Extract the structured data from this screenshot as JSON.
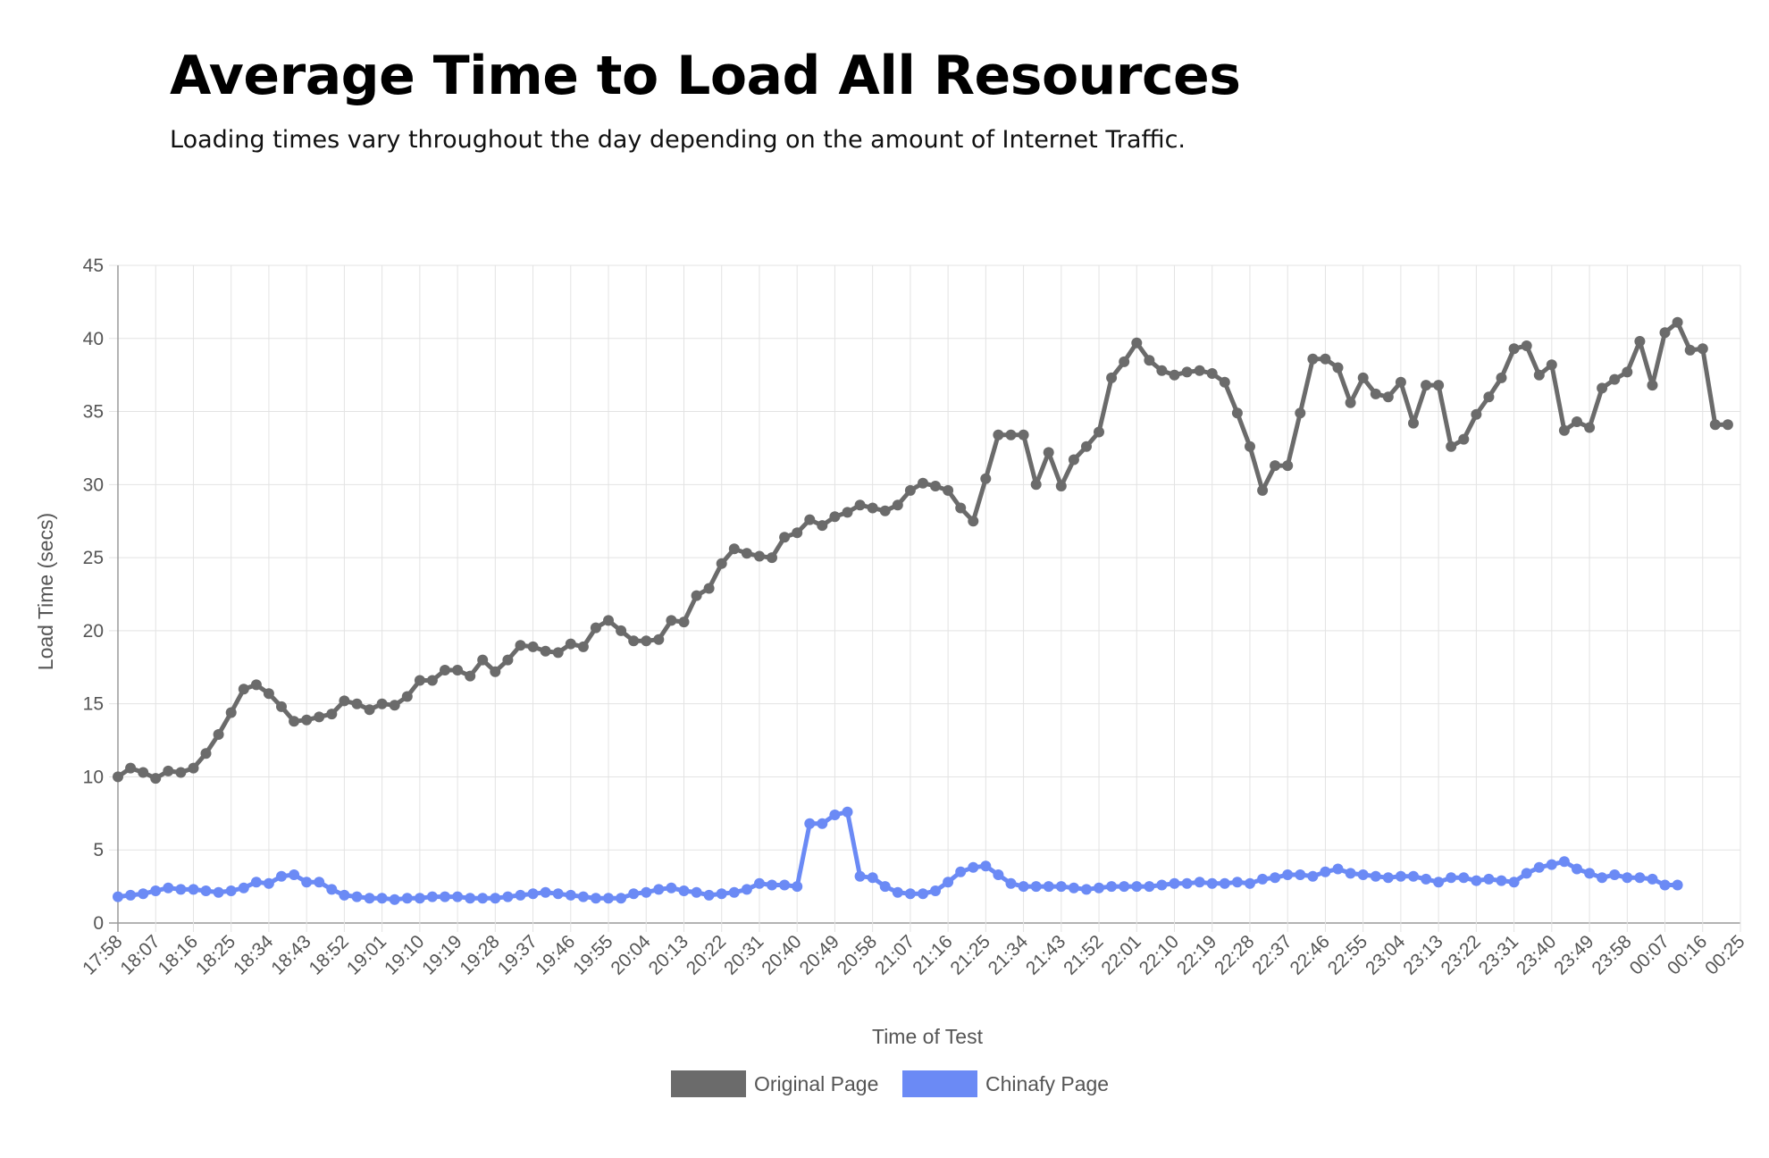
{
  "header": {
    "title": "Average Time to Load All Resources",
    "subtitle": "Loading times vary throughout the day depending on the amount of Internet Traffic."
  },
  "chart_data": {
    "type": "line",
    "xlabel": "Time of Test",
    "ylabel": "Load Time (secs)",
    "ylim": [
      0,
      45
    ],
    "yticks": [
      0,
      5,
      10,
      15,
      20,
      25,
      30,
      35,
      40,
      45
    ],
    "xticks": [
      "17:58",
      "18:07",
      "18:16",
      "18:25",
      "18:34",
      "18:43",
      "18:52",
      "19:01",
      "19:10",
      "19:19",
      "19:28",
      "19:37",
      "19:46",
      "19:55",
      "20:04",
      "20:13",
      "20:22",
      "20:31",
      "20:40",
      "20:49",
      "20:58",
      "21:07",
      "21:16",
      "21:25",
      "21:34",
      "21:43",
      "21:52",
      "22:01",
      "22:10",
      "22:19",
      "22:28",
      "22:37",
      "22:46",
      "22:55",
      "23:04",
      "23:13",
      "23:22",
      "23:31",
      "23:40",
      "23:49",
      "23:58",
      "00:07",
      "00:16",
      "00:25"
    ],
    "grid": true,
    "legend_position": "bottom",
    "series": [
      {
        "name": "Original Page",
        "color": "#6b6b6b",
        "values": [
          10.0,
          10.6,
          10.3,
          9.9,
          10.4,
          10.3,
          10.6,
          11.6,
          12.9,
          14.4,
          16.0,
          16.3,
          15.7,
          14.8,
          13.8,
          13.9,
          14.1,
          14.3,
          15.2,
          15.0,
          14.6,
          15.0,
          14.9,
          15.5,
          16.6,
          16.6,
          17.3,
          17.3,
          16.9,
          18.0,
          17.2,
          18.0,
          19.0,
          18.9,
          18.6,
          18.5,
          19.1,
          18.9,
          20.2,
          20.7,
          20.0,
          19.3,
          19.3,
          19.4,
          20.7,
          20.6,
          22.4,
          22.9,
          24.6,
          25.6,
          25.3,
          25.1,
          25.0,
          26.4,
          26.7,
          27.6,
          27.2,
          27.8,
          28.1,
          28.6,
          28.4,
          28.2,
          28.6,
          29.6,
          30.1,
          29.9,
          29.6,
          28.4,
          27.5,
          30.4,
          33.4,
          33.4,
          33.4,
          30.0,
          32.2,
          29.9,
          31.7,
          32.6,
          33.6,
          37.3,
          38.4,
          39.7,
          38.5,
          37.8,
          37.5,
          37.7,
          37.8,
          37.6,
          37.0,
          34.9,
          32.6,
          29.6,
          31.3,
          31.3,
          34.9,
          38.6,
          38.6,
          38.0,
          35.6,
          37.3,
          36.2,
          36.0,
          37.0,
          34.2,
          36.8,
          36.8,
          32.6,
          33.1,
          34.8,
          36.0,
          37.3,
          39.3,
          39.5,
          37.5,
          38.2,
          33.7,
          34.3,
          33.9,
          36.6,
          37.2,
          37.7,
          39.8,
          36.8,
          40.4,
          41.1,
          39.2,
          39.3,
          34.1,
          34.1
        ]
      },
      {
        "name": "Chinafy Page",
        "color": "#6b8af5",
        "values": [
          1.8,
          1.9,
          2.0,
          2.2,
          2.4,
          2.3,
          2.3,
          2.2,
          2.1,
          2.2,
          2.4,
          2.8,
          2.7,
          3.2,
          3.3,
          2.8,
          2.8,
          2.3,
          1.9,
          1.8,
          1.7,
          1.7,
          1.6,
          1.7,
          1.7,
          1.8,
          1.8,
          1.8,
          1.7,
          1.7,
          1.7,
          1.8,
          1.9,
          2.0,
          2.1,
          2.0,
          1.9,
          1.8,
          1.7,
          1.7,
          1.7,
          2.0,
          2.1,
          2.3,
          2.4,
          2.2,
          2.1,
          1.9,
          2.0,
          2.1,
          2.3,
          2.7,
          2.6,
          2.6,
          2.5,
          6.8,
          6.8,
          7.4,
          7.6,
          3.2,
          3.1,
          2.5,
          2.1,
          2.0,
          2.0,
          2.2,
          2.8,
          3.5,
          3.8,
          3.9,
          3.3,
          2.7,
          2.5,
          2.5,
          2.5,
          2.5,
          2.4,
          2.3,
          2.4,
          2.5,
          2.5,
          2.5,
          2.5,
          2.6,
          2.7,
          2.7,
          2.8,
          2.7,
          2.7,
          2.8,
          2.7,
          3.0,
          3.1,
          3.3,
          3.3,
          3.2,
          3.5,
          3.7,
          3.4,
          3.3,
          3.2,
          3.1,
          3.2,
          3.2,
          3.0,
          2.8,
          3.1,
          3.1,
          2.9,
          3.0,
          2.9,
          2.8,
          3.4,
          3.8,
          4.0,
          4.2,
          3.7,
          3.4,
          3.1,
          3.3,
          3.1,
          3.1,
          3.0,
          2.6,
          2.6
        ]
      }
    ]
  }
}
